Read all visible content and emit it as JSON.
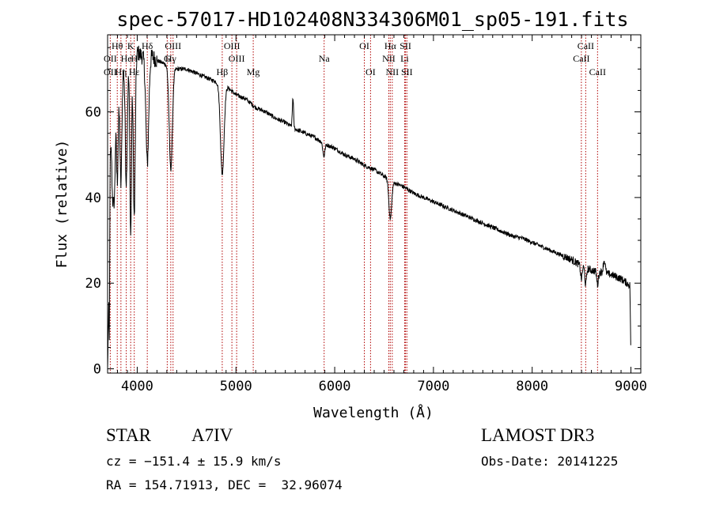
{
  "chart_data": {
    "type": "line",
    "title": "spec-57017-HD102408N334306M01_sp05-191.fits",
    "xlabel": "Wavelength (Å)",
    "ylabel": "Flux (relative)",
    "xlim": [
      3700,
      9100
    ],
    "ylim": [
      -1,
      78
    ],
    "xticks": [
      4000,
      5000,
      6000,
      7000,
      8000,
      9000
    ],
    "yticks": [
      0,
      20,
      40,
      60
    ],
    "grid": false,
    "series": [
      {
        "name": "flux",
        "continuum": [
          [
            3700,
            0
          ],
          [
            3712,
            15
          ],
          [
            3718,
            6
          ],
          [
            3725,
            48
          ],
          [
            3740,
            55
          ],
          [
            3760,
            50
          ],
          [
            3780,
            60
          ],
          [
            3800,
            62
          ],
          [
            3835,
            65
          ],
          [
            3860,
            70
          ],
          [
            3890,
            72
          ],
          [
            3920,
            70
          ],
          [
            3950,
            73
          ],
          [
            4000,
            74
          ],
          [
            4050,
            73
          ],
          [
            4100,
            72
          ],
          [
            4150,
            73
          ],
          [
            4200,
            72
          ],
          [
            4300,
            71
          ],
          [
            4400,
            70
          ],
          [
            4500,
            70
          ],
          [
            4600,
            69
          ],
          [
            4700,
            68
          ],
          [
            4800,
            67
          ],
          [
            4900,
            66
          ],
          [
            5000,
            64
          ],
          [
            5100,
            63
          ],
          [
            5200,
            61
          ],
          [
            5300,
            60
          ],
          [
            5400,
            58.5
          ],
          [
            5500,
            57.5
          ],
          [
            5600,
            56
          ],
          [
            5700,
            55
          ],
          [
            5800,
            54
          ],
          [
            5900,
            52.5
          ],
          [
            6000,
            51.5
          ],
          [
            6100,
            50
          ],
          [
            6200,
            49
          ],
          [
            6300,
            47.5
          ],
          [
            6400,
            46.5
          ],
          [
            6500,
            45
          ],
          [
            6600,
            43.5
          ],
          [
            6700,
            42.5
          ],
          [
            6800,
            41
          ],
          [
            6900,
            40
          ],
          [
            7000,
            39
          ],
          [
            7100,
            38
          ],
          [
            7200,
            37
          ],
          [
            7300,
            36
          ],
          [
            7400,
            35
          ],
          [
            7500,
            34
          ],
          [
            7600,
            33
          ],
          [
            7700,
            32
          ],
          [
            7800,
            31
          ],
          [
            7900,
            30.5
          ],
          [
            8000,
            29.5
          ],
          [
            8100,
            28.5
          ],
          [
            8200,
            27.5
          ],
          [
            8300,
            26.5
          ],
          [
            8400,
            25.5
          ],
          [
            8500,
            24
          ],
          [
            8600,
            23
          ],
          [
            8700,
            22.5
          ],
          [
            8800,
            22
          ],
          [
            8900,
            21
          ],
          [
            8960,
            20
          ],
          [
            8990,
            19.5
          ],
          [
            9000,
            2
          ]
        ],
        "absorption_features": [
          {
            "wavelength": 3750,
            "depth": 12,
            "width": 8
          },
          {
            "wavelength": 3770,
            "depth": 14,
            "width": 8
          },
          {
            "wavelength": 3798,
            "depth": 18,
            "width": 8
          },
          {
            "wavelength": 3835,
            "depth": 22,
            "width": 9
          },
          {
            "wavelength": 3889,
            "depth": 28,
            "width": 10
          },
          {
            "wavelength": 3934,
            "depth": 40,
            "width": 8
          },
          {
            "wavelength": 3970,
            "depth": 38,
            "width": 10
          },
          {
            "wavelength": 4102,
            "depth": 24,
            "width": 14
          },
          {
            "wavelength": 4340,
            "depth": 24,
            "width": 16
          },
          {
            "wavelength": 4861,
            "depth": 21,
            "width": 18
          },
          {
            "wavelength": 5890,
            "depth": 3,
            "width": 10
          },
          {
            "wavelength": 6563,
            "depth": 9,
            "width": 14
          },
          {
            "wavelength": 8498,
            "depth": 3,
            "width": 8
          },
          {
            "wavelength": 8542,
            "depth": 4,
            "width": 8
          },
          {
            "wavelength": 8662,
            "depth": 3,
            "width": 8
          }
        ],
        "emission_features": [
          {
            "wavelength": 5577,
            "height": 7,
            "width": 6
          },
          {
            "wavelength": 8730,
            "height": 3,
            "width": 10
          }
        ]
      }
    ],
    "line_markers": [
      {
        "label": "OII",
        "wavelength": 3727,
        "row": 2
      },
      {
        "label": "Hθ",
        "wavelength": 3798,
        "row": 0
      },
      {
        "label": "OII",
        "wavelength": 3727,
        "row": 1
      },
      {
        "label": "Hη",
        "wavelength": 3835,
        "row": 2
      },
      {
        "label": "K",
        "wavelength": 3934,
        "row": 0
      },
      {
        "label": "He",
        "wavelength": 3889,
        "row": 1
      },
      {
        "label": "H",
        "wavelength": 3970,
        "row": 1
      },
      {
        "label": "Hε",
        "wavelength": 3970,
        "row": 2
      },
      {
        "label": "Hδ",
        "wavelength": 4102,
        "row": 0
      },
      {
        "label": "G",
        "wavelength": 4304,
        "row": 1
      },
      {
        "label": "OIII",
        "wavelength": 4363,
        "row": 0
      },
      {
        "label": "Hγ",
        "wavelength": 4340,
        "row": 1
      },
      {
        "label": "OIII",
        "wavelength": 4959,
        "row": 0
      },
      {
        "label": "OIII",
        "wavelength": 5007,
        "row": 1
      },
      {
        "label": "Hβ",
        "wavelength": 4861,
        "row": 2
      },
      {
        "label": "Mg",
        "wavelength": 5175,
        "row": 2
      },
      {
        "label": "Na",
        "wavelength": 5893,
        "row": 1
      },
      {
        "label": "OI",
        "wavelength": 6300,
        "row": 0
      },
      {
        "label": "OI",
        "wavelength": 6363,
        "row": 2
      },
      {
        "label": "Hα",
        "wavelength": 6563,
        "row": 0
      },
      {
        "label": "NII",
        "wavelength": 6548,
        "row": 1
      },
      {
        "label": "NII",
        "wavelength": 6583,
        "row": 2
      },
      {
        "label": "SII",
        "wavelength": 6717,
        "row": 0
      },
      {
        "label": "Li",
        "wavelength": 6708,
        "row": 1
      },
      {
        "label": "SII",
        "wavelength": 6731,
        "row": 2
      },
      {
        "label": "CaII",
        "wavelength": 8542,
        "row": 0
      },
      {
        "label": "CaII",
        "wavelength": 8498,
        "row": 1
      },
      {
        "label": "CaII",
        "wavelength": 8662,
        "row": 2
      }
    ],
    "marker_line_wavelengths": [
      3727,
      3798,
      3835,
      3889,
      3934,
      3970,
      4102,
      4304,
      4340,
      4363,
      4861,
      4959,
      5007,
      5175,
      5893,
      6300,
      6363,
      6548,
      6563,
      6583,
      6708,
      6717,
      6731,
      8498,
      8542,
      8662
    ],
    "marker_color": "#b00000"
  },
  "footer": {
    "class_label": "STAR",
    "subclass": "A7IV",
    "survey": "LAMOST DR3",
    "cz": "cz = −151.4 ± 15.9 km/s",
    "obs_date": "Obs-Date: 20141225",
    "coords": "RA = 154.71913, DEC =  32.96074"
  }
}
